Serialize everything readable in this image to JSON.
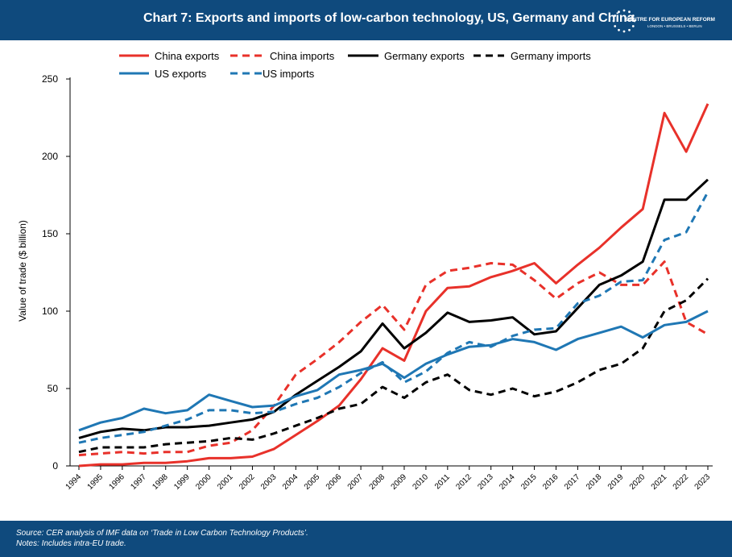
{
  "header": {
    "title": "Chart 7: Exports and imports of low-carbon technology, US, Germany and China",
    "logo_name": "CENTRE FOR EUROPEAN REFORM",
    "logo_cities": "LONDON • BRUSSELS • BERLIN"
  },
  "footer": {
    "source": "Source: CER analysis of IMF data on ‘Trade in Low Carbon Technology Products’.",
    "notes": "Notes: Includes intra-EU trade."
  },
  "colors": {
    "header_bg": "#0f4a7d",
    "china": "#e8312a",
    "germany": "#000000",
    "us": "#1f77b4"
  },
  "chart_data": {
    "type": "line",
    "ylabel": "Value of trade ($ billion)",
    "ylim": [
      0,
      250
    ],
    "yticks": [
      0,
      50,
      100,
      150,
      200,
      250
    ],
    "grid": false,
    "legend_position": "top",
    "x": [
      "1994",
      "1995",
      "1996",
      "1997",
      "1998",
      "1999",
      "2000",
      "2001",
      "2002",
      "2003",
      "2004",
      "2005",
      "2006",
      "2007",
      "2008",
      "2009",
      "2010",
      "2011",
      "2012",
      "2013",
      "2014",
      "2015",
      "2016",
      "2017",
      "2018",
      "2019",
      "2020",
      "2021",
      "2022",
      "2023"
    ],
    "series": [
      {
        "name": "China exports",
        "color": "#e8312a",
        "dash": "solid",
        "values": [
          0,
          1,
          1,
          2,
          2,
          3,
          5,
          5,
          6,
          11,
          20,
          29,
          39,
          56,
          76,
          68,
          100,
          115,
          116,
          122,
          126,
          131,
          118,
          130,
          141,
          154,
          166,
          228,
          203,
          234
        ]
      },
      {
        "name": "China imports",
        "color": "#e8312a",
        "dash": "dashed",
        "values": [
          7,
          8,
          9,
          8,
          9,
          9,
          13,
          15,
          23,
          39,
          59,
          69,
          80,
          93,
          104,
          88,
          117,
          126,
          128,
          131,
          130,
          120,
          108,
          118,
          125,
          117,
          117,
          132,
          93,
          85
        ]
      },
      {
        "name": "Germany exports",
        "color": "#000000",
        "dash": "solid",
        "values": [
          18,
          22,
          24,
          23,
          25,
          25,
          26,
          28,
          30,
          35,
          46,
          55,
          64,
          74,
          92,
          76,
          86,
          99,
          93,
          94,
          96,
          85,
          87,
          102,
          117,
          123,
          132,
          172,
          172,
          185
        ]
      },
      {
        "name": "Germany imports",
        "color": "#000000",
        "dash": "dashed",
        "values": [
          9,
          12,
          12,
          12,
          14,
          15,
          16,
          18,
          17,
          21,
          26,
          31,
          37,
          40,
          51,
          44,
          54,
          59,
          49,
          46,
          50,
          45,
          48,
          54,
          62,
          66,
          76,
          100,
          107,
          121
        ]
      },
      {
        "name": "US exports",
        "color": "#1f77b4",
        "dash": "solid",
        "values": [
          23,
          28,
          31,
          37,
          34,
          36,
          46,
          42,
          38,
          39,
          45,
          49,
          59,
          62,
          66,
          57,
          66,
          72,
          77,
          78,
          82,
          80,
          75,
          82,
          86,
          90,
          83,
          91,
          93,
          100
        ]
      },
      {
        "name": "US imports",
        "color": "#1f77b4",
        "dash": "dashed",
        "values": [
          15,
          18,
          20,
          22,
          26,
          30,
          36,
          36,
          34,
          35,
          40,
          44,
          51,
          60,
          67,
          54,
          61,
          73,
          80,
          77,
          84,
          88,
          89,
          105,
          110,
          119,
          120,
          146,
          151,
          177
        ]
      }
    ]
  }
}
